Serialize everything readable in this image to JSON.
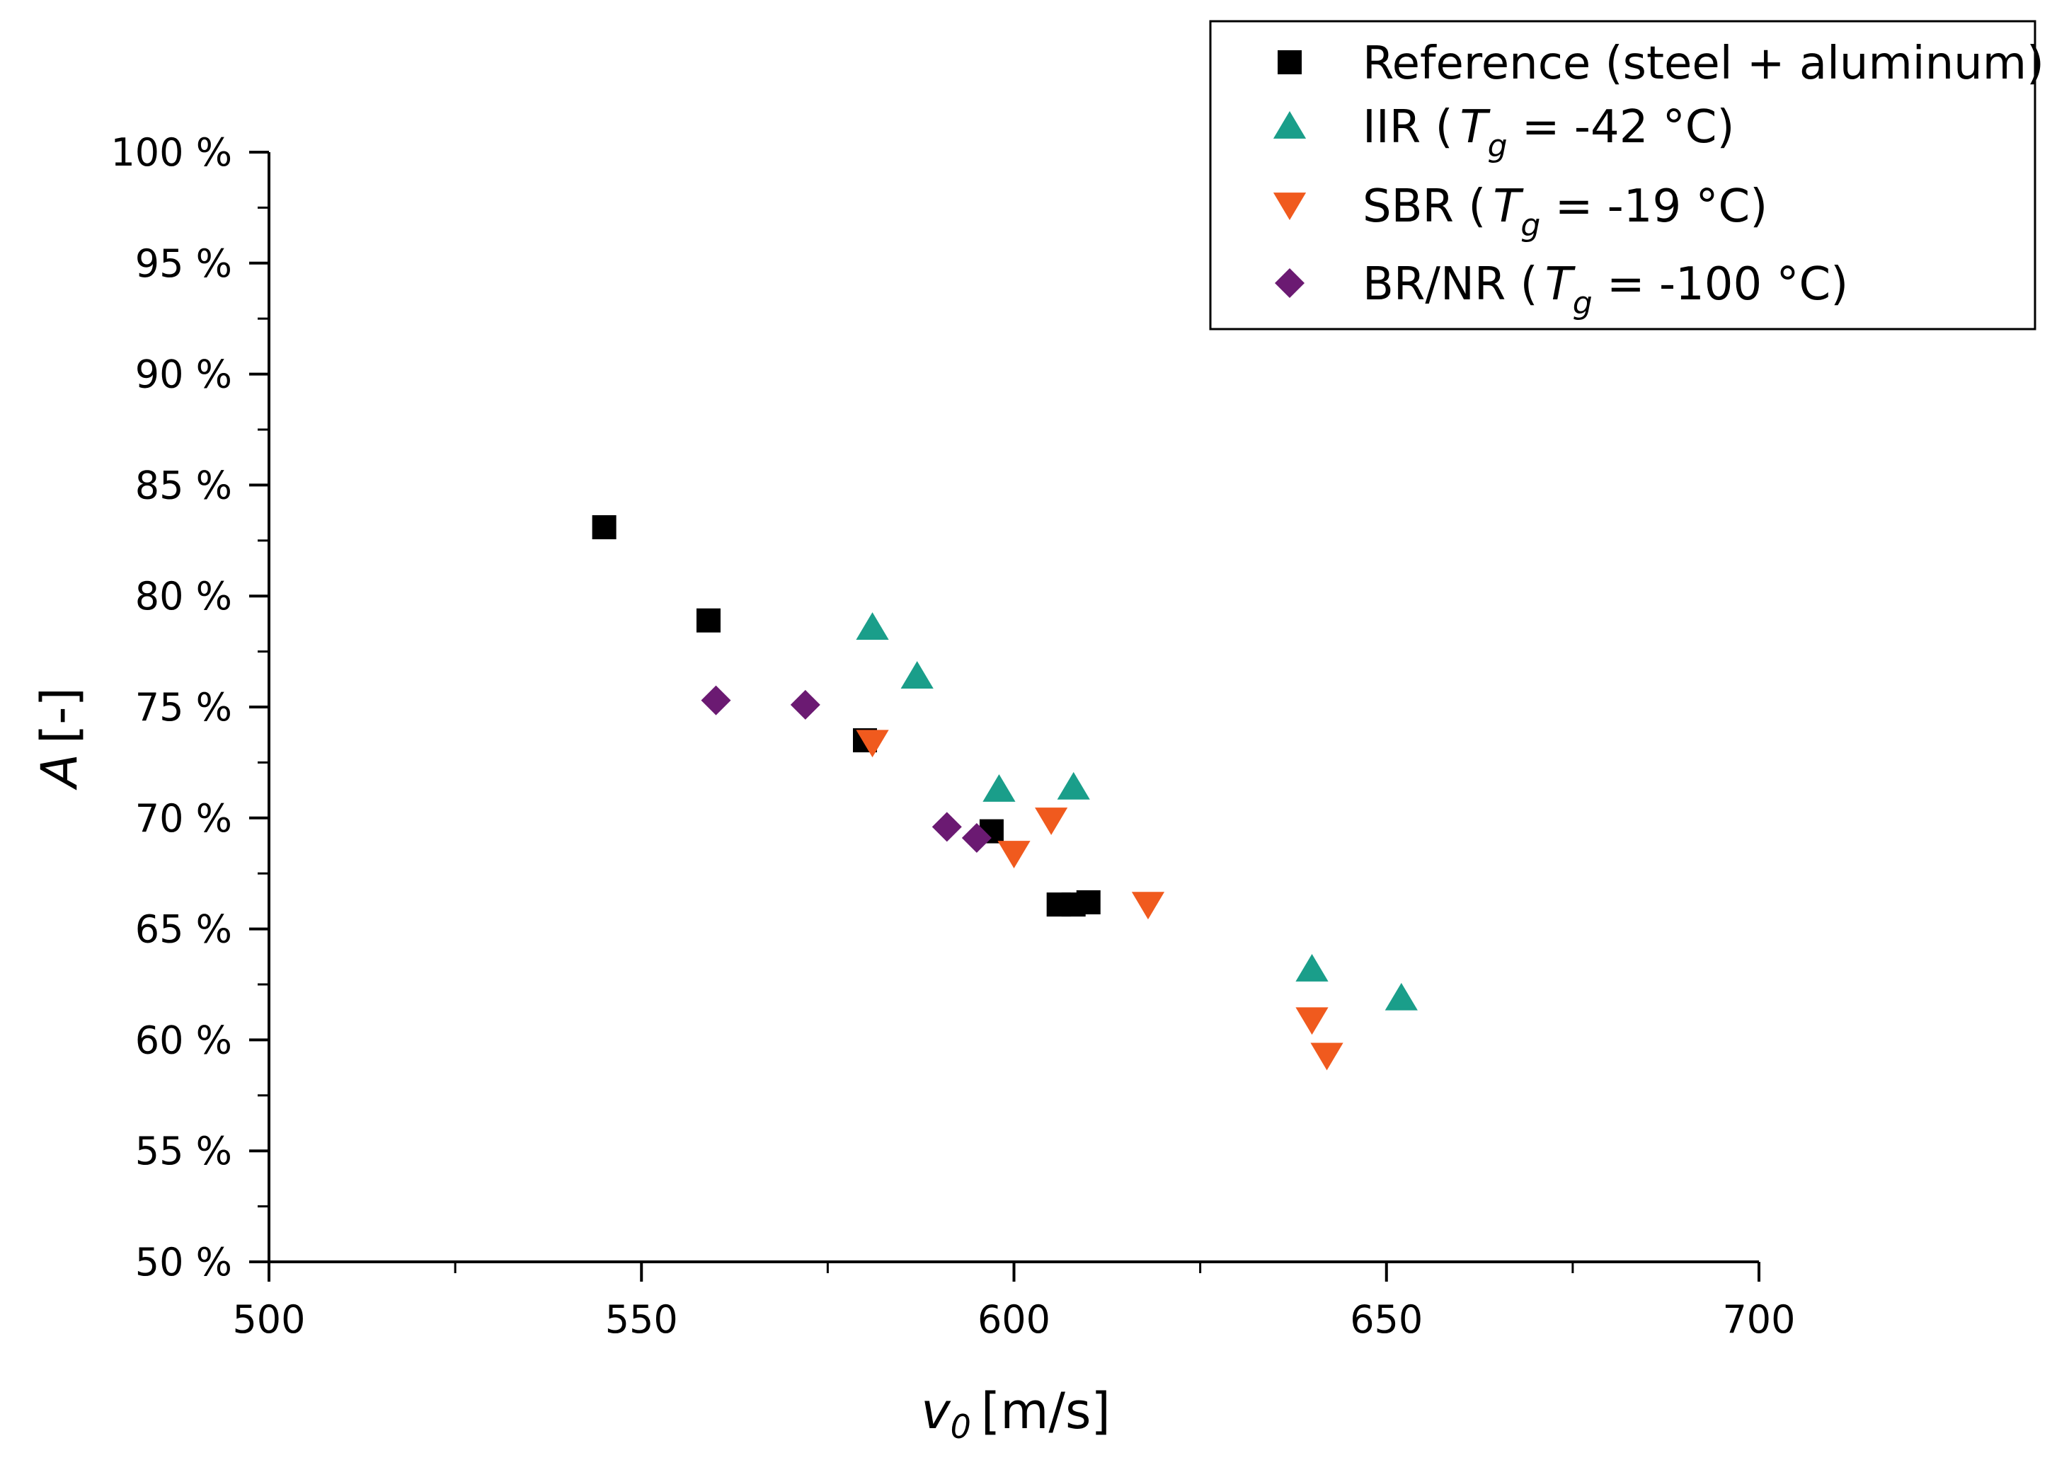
{
  "chart_data": {
    "type": "scatter",
    "title": "",
    "xlabel": {
      "var": "v",
      "sub": "0",
      "unit": "[m/s]"
    },
    "ylabel": {
      "var": "A",
      "unit": "[-]"
    },
    "xlim": [
      500,
      700
    ],
    "ylim": [
      50,
      100
    ],
    "x_ticks": [
      500,
      550,
      600,
      650,
      700
    ],
    "x_tick_labels": [
      "500",
      "550",
      "600",
      "650",
      "700"
    ],
    "y_ticks": [
      50,
      55,
      60,
      65,
      70,
      75,
      80,
      85,
      90,
      95,
      100
    ],
    "y_tick_labels": [
      "50 %",
      "55 %",
      "60 %",
      "65 %",
      "70 %",
      "75 %",
      "80 %",
      "85 %",
      "90 %",
      "95 %",
      "100 %"
    ],
    "legend_position": "top-right",
    "series": [
      {
        "name": "Reference (steel + aluminum)",
        "legend": {
          "label": "Reference (steel + aluminum)"
        },
        "marker": "square",
        "color": "#000000",
        "x": [
          545,
          559,
          580,
          597,
          606,
          608,
          610
        ],
        "y": [
          83.1,
          78.9,
          73.5,
          69.4,
          66.1,
          66.1,
          66.2
        ]
      },
      {
        "name": "IIR (Tg = -42 °C)",
        "legend": {
          "prefix": "IIR (",
          "var": "T",
          "sub": "g",
          "suffix": " = -42 °C)"
        },
        "marker": "triangle-up",
        "color": "#1a9e8a",
        "x": [
          581,
          587,
          598,
          608,
          640,
          652
        ],
        "y": [
          78.6,
          76.4,
          71.3,
          71.4,
          63.2,
          61.9
        ]
      },
      {
        "name": "SBR (Tg = -19 °C)",
        "legend": {
          "prefix": "SBR (",
          "var": "T",
          "sub": "g",
          "suffix": " = -19 °C)"
        },
        "marker": "triangle-down",
        "color": "#f05a1e",
        "x": [
          581,
          600,
          605,
          618,
          640,
          642
        ],
        "y": [
          73.4,
          68.4,
          69.9,
          66.1,
          60.9,
          59.3
        ]
      },
      {
        "name": "BR/NR (Tg = -100 °C)",
        "legend": {
          "prefix": "BR/NR (",
          "var": "T",
          "sub": "g",
          "suffix": " = -100 °C)"
        },
        "marker": "diamond",
        "color": "#6b1a72",
        "x": [
          560,
          572,
          591,
          595
        ],
        "y": [
          75.3,
          75.1,
          69.6,
          69.1
        ]
      }
    ]
  }
}
